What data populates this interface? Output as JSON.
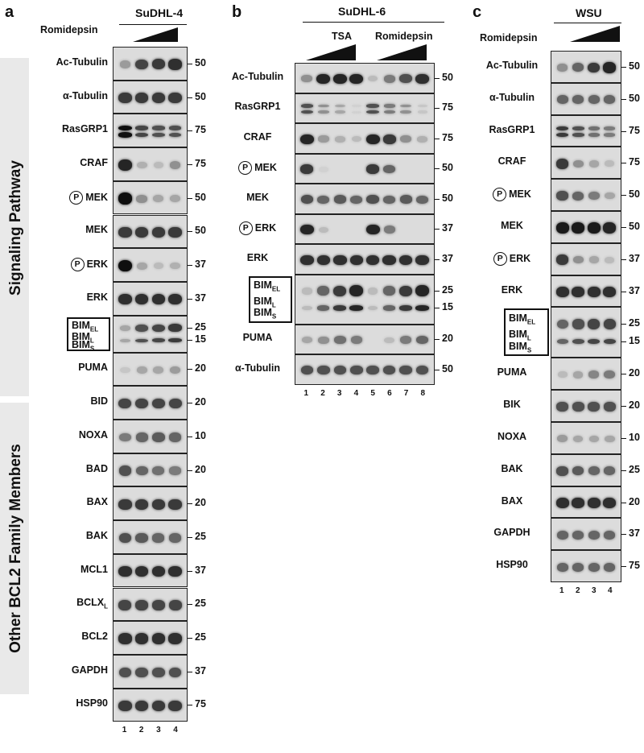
{
  "panels": [
    {
      "letter": "a",
      "cell_line": "SuDHL-4",
      "treatment": "Romidepsin",
      "group_labels": [
        "Signaling  Pathway",
        "Other BCL2 Family Members"
      ],
      "lanes": [
        "1",
        "2",
        "3",
        "4"
      ],
      "rows": [
        {
          "label": "Ac-Tubulin",
          "mw": "50",
          "pattern": [
            0.35,
            0.75,
            0.8,
            0.85
          ]
        },
        {
          "label": "α-Tubulin",
          "mw": "50",
          "pattern": [
            0.8,
            0.8,
            0.8,
            0.8
          ]
        },
        {
          "label": "RasGRP1",
          "mw": "75",
          "pattern": [
            1,
            0.75,
            0.7,
            0.7
          ]
        },
        {
          "label": "CRAF",
          "mw": "75",
          "pattern": [
            0.9,
            0.25,
            0.2,
            0.4
          ]
        },
        {
          "label": "MEK",
          "mw": "50",
          "pattern": [
            1,
            0.4,
            0.3,
            0.3
          ],
          "phospho": true
        },
        {
          "label": "MEK",
          "mw": "50",
          "pattern": [
            0.8,
            0.8,
            0.8,
            0.8
          ]
        },
        {
          "label": "ERK",
          "mw": "37",
          "pattern": [
            1,
            0.3,
            0.2,
            0.25
          ],
          "phospho": true
        },
        {
          "label": "ERK",
          "mw": "37",
          "pattern": [
            0.85,
            0.85,
            0.85,
            0.85
          ]
        },
        {
          "label": "BIM",
          "mw": "25",
          "mw2": "15",
          "pattern": [
            0.3,
            0.7,
            0.75,
            0.8
          ],
          "bim": true
        },
        {
          "label": "PUMA",
          "mw": "20",
          "pattern": [
            0.15,
            0.3,
            0.3,
            0.35
          ]
        },
        {
          "label": "BID",
          "mw": "20",
          "pattern": [
            0.75,
            0.75,
            0.75,
            0.75
          ]
        },
        {
          "label": "NOXA",
          "mw": "10",
          "pattern": [
            0.5,
            0.6,
            0.65,
            0.6
          ]
        },
        {
          "label": "BAD",
          "mw": "20",
          "pattern": [
            0.7,
            0.6,
            0.55,
            0.5
          ]
        },
        {
          "label": "BAX",
          "mw": "20",
          "pattern": [
            0.8,
            0.8,
            0.8,
            0.8
          ]
        },
        {
          "label": "BAK",
          "mw": "25",
          "pattern": [
            0.7,
            0.65,
            0.6,
            0.6
          ]
        },
        {
          "label": "MCL1",
          "mw": "37",
          "pattern": [
            0.85,
            0.85,
            0.85,
            0.85
          ]
        },
        {
          "label": "BCLXL",
          "mw": "25",
          "pattern": [
            0.75,
            0.75,
            0.75,
            0.75
          ],
          "sub": "L"
        },
        {
          "label": "BCL2",
          "mw": "25",
          "pattern": [
            0.85,
            0.85,
            0.85,
            0.85
          ]
        },
        {
          "label": "GAPDH",
          "mw": "37",
          "pattern": [
            0.7,
            0.7,
            0.7,
            0.7
          ]
        },
        {
          "label": "HSP90",
          "mw": "75",
          "pattern": [
            0.8,
            0.8,
            0.8,
            0.8
          ]
        }
      ]
    },
    {
      "letter": "b",
      "cell_line": "SuDHL-6",
      "treatment_a": "TSA",
      "treatment_b": "Romidepsin",
      "lanes": [
        "1",
        "2",
        "3",
        "4",
        "5",
        "6",
        "7",
        "8"
      ],
      "rows": [
        {
          "label": "Ac-Tubulin",
          "mw": "50",
          "pattern": [
            0.4,
            0.9,
            0.9,
            0.9,
            0.2,
            0.5,
            0.7,
            0.85
          ]
        },
        {
          "label": "RasGRP1",
          "mw": "75",
          "pattern": [
            0.7,
            0.4,
            0.3,
            0.1,
            0.7,
            0.5,
            0.4,
            0.15
          ]
        },
        {
          "label": "CRAF",
          "mw": "75",
          "pattern": [
            0.9,
            0.35,
            0.25,
            0.2,
            0.9,
            0.8,
            0.4,
            0.25
          ]
        },
        {
          "label": "MEK",
          "mw": "50",
          "pattern": [
            0.8,
            0.1,
            0,
            0,
            0.8,
            0.6,
            0,
            0
          ],
          "phospho": true
        },
        {
          "label": "MEK",
          "mw": "50",
          "pattern": [
            0.7,
            0.6,
            0.65,
            0.6,
            0.7,
            0.6,
            0.65,
            0.6
          ]
        },
        {
          "label": "ERK",
          "mw": "37",
          "pattern": [
            0.9,
            0.2,
            0,
            0,
            0.9,
            0.5,
            0,
            0
          ],
          "phospho": true
        },
        {
          "label": "ERK",
          "mw": "37",
          "pattern": [
            0.85,
            0.85,
            0.85,
            0.85,
            0.85,
            0.85,
            0.85,
            0.85
          ]
        },
        {
          "label": "BIM",
          "mw": "25",
          "mw2": "15",
          "pattern": [
            0.2,
            0.6,
            0.8,
            0.9,
            0.2,
            0.6,
            0.8,
            0.9
          ],
          "bim": true
        },
        {
          "label": "PUMA",
          "mw": "20",
          "pattern": [
            0.3,
            0.4,
            0.55,
            0.5,
            0,
            0.2,
            0.5,
            0.6
          ]
        },
        {
          "label": "α-Tubulin",
          "mw": "50",
          "pattern": [
            0.7,
            0.7,
            0.7,
            0.7,
            0.7,
            0.7,
            0.7,
            0.7
          ]
        }
      ]
    },
    {
      "letter": "c",
      "cell_line": "WSU",
      "treatment": "Romidepsin",
      "lanes": [
        "1",
        "2",
        "3",
        "4"
      ],
      "rows": [
        {
          "label": "Ac-Tubulin",
          "mw": "50",
          "pattern": [
            0.4,
            0.6,
            0.8,
            0.9
          ]
        },
        {
          "label": "α-Tubulin",
          "mw": "50",
          "pattern": [
            0.6,
            0.6,
            0.6,
            0.6
          ]
        },
        {
          "label": "RasGRP1",
          "mw": "75",
          "pattern": [
            0.8,
            0.7,
            0.55,
            0.5
          ]
        },
        {
          "label": "CRAF",
          "mw": "75",
          "pattern": [
            0.8,
            0.4,
            0.3,
            0.2
          ]
        },
        {
          "label": "MEK",
          "mw": "50",
          "pattern": [
            0.7,
            0.6,
            0.5,
            0.3
          ],
          "phospho": true
        },
        {
          "label": "MEK",
          "mw": "50",
          "pattern": [
            0.95,
            0.95,
            0.95,
            0.9
          ]
        },
        {
          "label": "ERK",
          "mw": "37",
          "pattern": [
            0.8,
            0.4,
            0.3,
            0.2
          ],
          "phospho": true
        },
        {
          "label": "ERK",
          "mw": "37",
          "pattern": [
            0.85,
            0.85,
            0.85,
            0.85
          ]
        },
        {
          "label": "BIM",
          "mw": "25",
          "mw2": "15",
          "pattern": [
            0.6,
            0.7,
            0.75,
            0.75
          ],
          "bim": true
        },
        {
          "label": "PUMA",
          "mw": "20",
          "pattern": [
            0.2,
            0.3,
            0.45,
            0.5
          ]
        },
        {
          "label": "BIK",
          "mw": "20",
          "pattern": [
            0.7,
            0.7,
            0.7,
            0.7
          ]
        },
        {
          "label": "NOXA",
          "mw": "10",
          "pattern": [
            0.35,
            0.3,
            0.3,
            0.3
          ]
        },
        {
          "label": "BAK",
          "mw": "25",
          "pattern": [
            0.7,
            0.65,
            0.6,
            0.6
          ]
        },
        {
          "label": "BAX",
          "mw": "20",
          "pattern": [
            0.85,
            0.85,
            0.85,
            0.85
          ]
        },
        {
          "label": "GAPDH",
          "mw": "37",
          "pattern": [
            0.6,
            0.6,
            0.6,
            0.6
          ]
        },
        {
          "label": "HSP90",
          "mw": "75",
          "pattern": [
            0.6,
            0.6,
            0.6,
            0.6
          ]
        }
      ]
    }
  ],
  "phospho_symbol": "P",
  "bim_labels": {
    "el": "BIM",
    "el_sub": "EL",
    "l": "BIM",
    "l_sub": "L",
    "s": "BIM",
    "s_sub": "S"
  }
}
